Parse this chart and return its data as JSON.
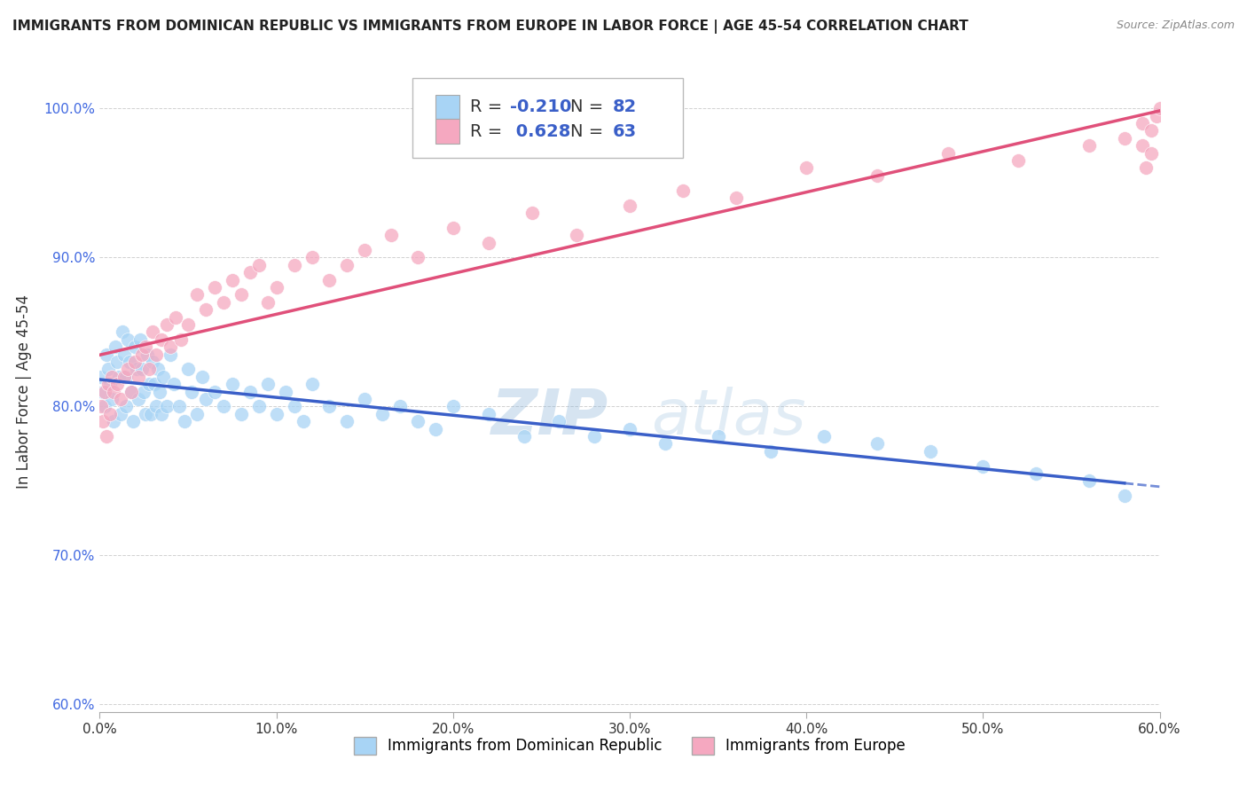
{
  "title": "IMMIGRANTS FROM DOMINICAN REPUBLIC VS IMMIGRANTS FROM EUROPE IN LABOR FORCE | AGE 45-54 CORRELATION CHART",
  "source": "Source: ZipAtlas.com",
  "ylabel": "In Labor Force | Age 45-54",
  "xlabel_blue": "Immigrants from Dominican Republic",
  "xlabel_pink": "Immigrants from Europe",
  "r_blue": -0.21,
  "n_blue": 82,
  "r_pink": 0.628,
  "n_pink": 63,
  "xmin": 0.0,
  "xmax": 0.6,
  "ymin": 0.595,
  "ymax": 1.025,
  "yticks": [
    0.6,
    0.7,
    0.8,
    0.9,
    1.0
  ],
  "ytick_labels": [
    "60.0%",
    "70.0%",
    "80.0%",
    "90.0%",
    "100.0%"
  ],
  "xticks": [
    0.0,
    0.1,
    0.2,
    0.3,
    0.4,
    0.5,
    0.6
  ],
  "xtick_labels": [
    "0.0%",
    "10.0%",
    "20.0%",
    "30.0%",
    "40.0%",
    "50.0%",
    "60.0%"
  ],
  "color_blue": "#a8d4f5",
  "color_pink": "#f5a8c0",
  "color_blue_line": "#3a5fc8",
  "color_pink_line": "#e0507a",
  "watermark_zip": "ZIP",
  "watermark_atlas": "atlas",
  "blue_scatter_x": [
    0.001,
    0.002,
    0.003,
    0.004,
    0.005,
    0.006,
    0.007,
    0.008,
    0.009,
    0.01,
    0.011,
    0.012,
    0.013,
    0.014,
    0.015,
    0.015,
    0.016,
    0.017,
    0.018,
    0.019,
    0.02,
    0.021,
    0.022,
    0.023,
    0.024,
    0.025,
    0.026,
    0.027,
    0.028,
    0.029,
    0.03,
    0.031,
    0.032,
    0.033,
    0.034,
    0.035,
    0.036,
    0.038,
    0.04,
    0.042,
    0.045,
    0.048,
    0.05,
    0.052,
    0.055,
    0.058,
    0.06,
    0.065,
    0.07,
    0.075,
    0.08,
    0.085,
    0.09,
    0.095,
    0.1,
    0.105,
    0.11,
    0.115,
    0.12,
    0.13,
    0.14,
    0.15,
    0.16,
    0.17,
    0.18,
    0.19,
    0.2,
    0.22,
    0.24,
    0.26,
    0.28,
    0.3,
    0.32,
    0.35,
    0.38,
    0.41,
    0.44,
    0.47,
    0.5,
    0.53,
    0.56,
    0.58
  ],
  "blue_scatter_y": [
    0.82,
    0.81,
    0.8,
    0.835,
    0.825,
    0.815,
    0.805,
    0.79,
    0.84,
    0.83,
    0.82,
    0.795,
    0.85,
    0.835,
    0.82,
    0.8,
    0.845,
    0.83,
    0.81,
    0.79,
    0.84,
    0.825,
    0.805,
    0.845,
    0.825,
    0.81,
    0.795,
    0.835,
    0.815,
    0.795,
    0.83,
    0.815,
    0.8,
    0.825,
    0.81,
    0.795,
    0.82,
    0.8,
    0.835,
    0.815,
    0.8,
    0.79,
    0.825,
    0.81,
    0.795,
    0.82,
    0.805,
    0.81,
    0.8,
    0.815,
    0.795,
    0.81,
    0.8,
    0.815,
    0.795,
    0.81,
    0.8,
    0.79,
    0.815,
    0.8,
    0.79,
    0.805,
    0.795,
    0.8,
    0.79,
    0.785,
    0.8,
    0.795,
    0.78,
    0.79,
    0.78,
    0.785,
    0.775,
    0.78,
    0.77,
    0.78,
    0.775,
    0.77,
    0.76,
    0.755,
    0.75,
    0.74
  ],
  "pink_scatter_x": [
    0.001,
    0.002,
    0.003,
    0.004,
    0.005,
    0.006,
    0.007,
    0.008,
    0.01,
    0.012,
    0.014,
    0.016,
    0.018,
    0.02,
    0.022,
    0.024,
    0.026,
    0.028,
    0.03,
    0.032,
    0.035,
    0.038,
    0.04,
    0.043,
    0.046,
    0.05,
    0.055,
    0.06,
    0.065,
    0.07,
    0.075,
    0.08,
    0.085,
    0.09,
    0.095,
    0.1,
    0.11,
    0.12,
    0.13,
    0.14,
    0.15,
    0.165,
    0.18,
    0.2,
    0.22,
    0.245,
    0.27,
    0.3,
    0.33,
    0.36,
    0.4,
    0.44,
    0.48,
    0.52,
    0.56,
    0.58,
    0.59,
    0.595,
    0.598,
    0.6,
    0.59,
    0.595,
    0.592
  ],
  "pink_scatter_y": [
    0.8,
    0.79,
    0.81,
    0.78,
    0.815,
    0.795,
    0.82,
    0.81,
    0.815,
    0.805,
    0.82,
    0.825,
    0.81,
    0.83,
    0.82,
    0.835,
    0.84,
    0.825,
    0.85,
    0.835,
    0.845,
    0.855,
    0.84,
    0.86,
    0.845,
    0.855,
    0.875,
    0.865,
    0.88,
    0.87,
    0.885,
    0.875,
    0.89,
    0.895,
    0.87,
    0.88,
    0.895,
    0.9,
    0.885,
    0.895,
    0.905,
    0.915,
    0.9,
    0.92,
    0.91,
    0.93,
    0.915,
    0.935,
    0.945,
    0.94,
    0.96,
    0.955,
    0.97,
    0.965,
    0.975,
    0.98,
    0.99,
    0.985,
    0.995,
    1.0,
    0.975,
    0.97,
    0.96
  ]
}
